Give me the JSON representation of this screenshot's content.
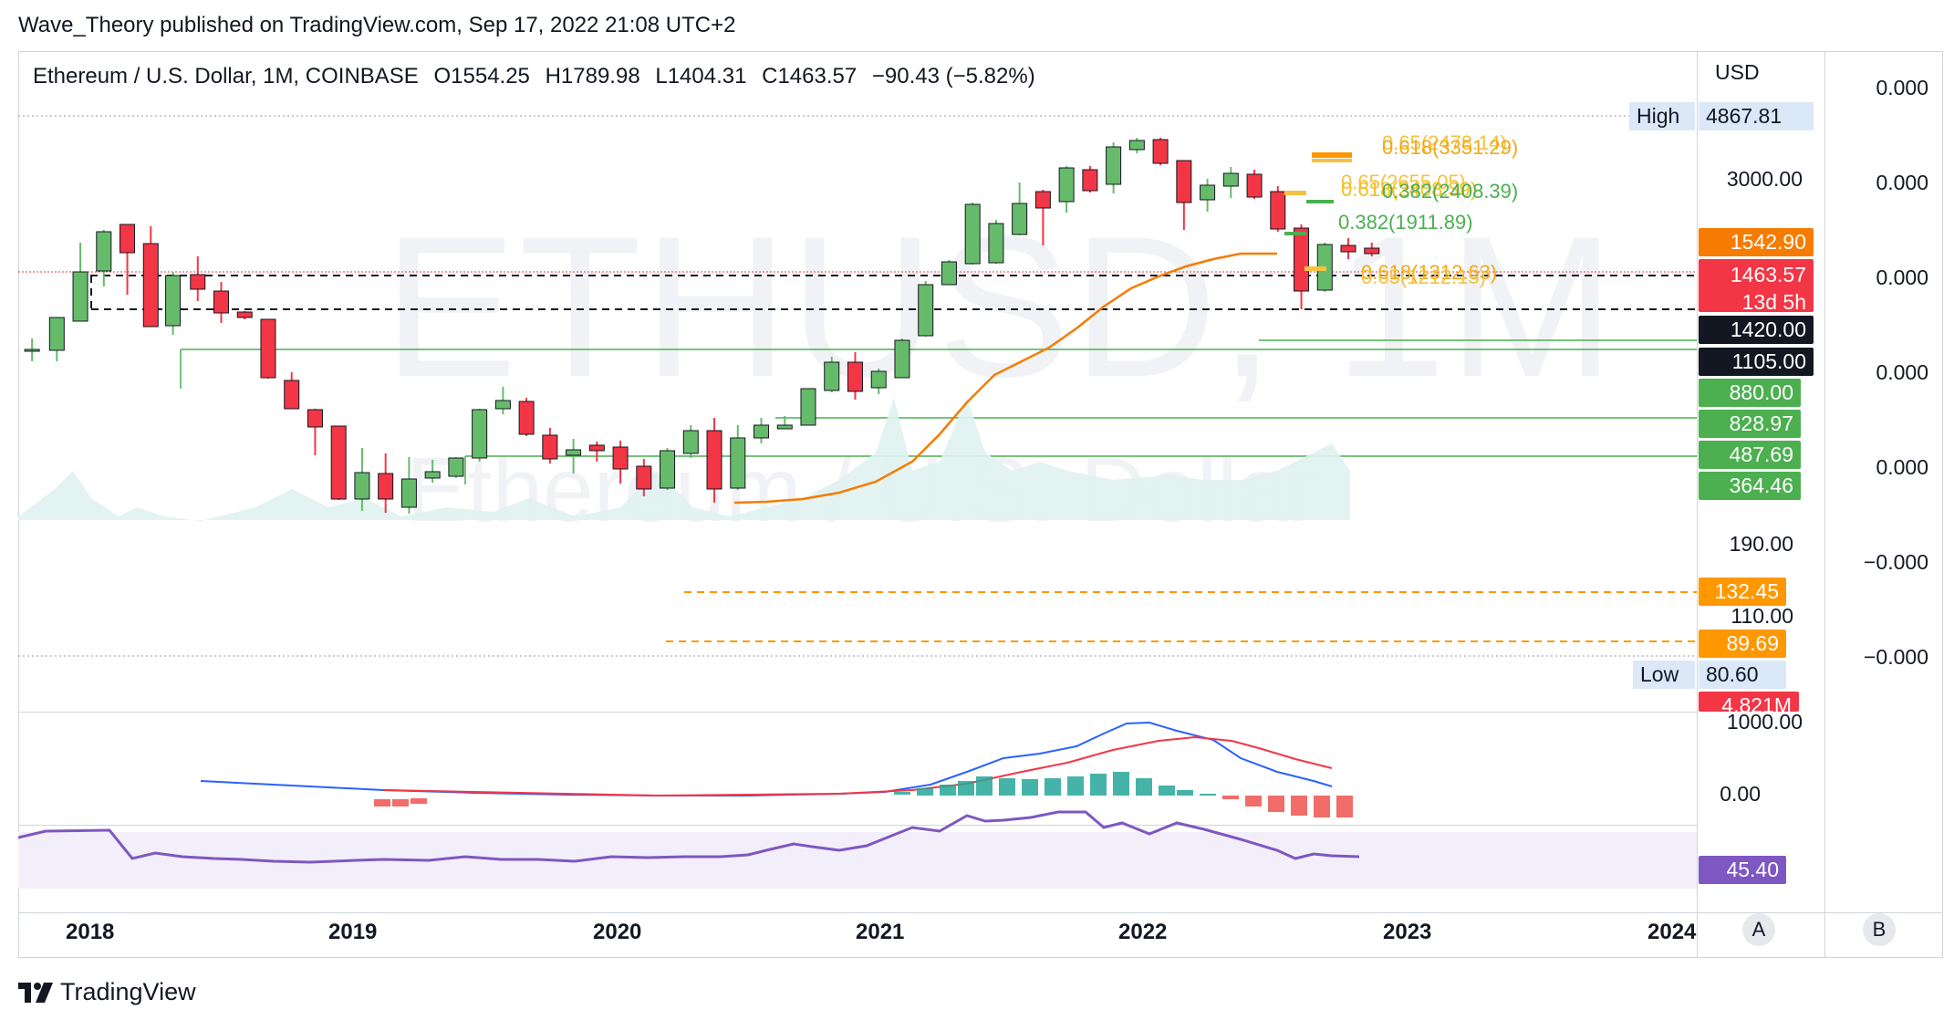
{
  "header": {
    "published": "Wave_Theory published on TradingView.com, Sep 17, 2022 21:08 UTC+2"
  },
  "legend": {
    "symbol": "Ethereum / U.S. Dollar, 1M, COINBASE",
    "open": "O1554.25",
    "high": "H1789.98",
    "low": "L1404.31",
    "close": "C1463.57",
    "change": "−90.43 (−5.82%)"
  },
  "watermark": {
    "ticker": "ETHUSD, 1M",
    "name": "Ethereum / U.S. Dollar"
  },
  "price_axis": {
    "currency": "USD",
    "high_label": "High",
    "high_value": "4867.81",
    "low_label": "Low",
    "low_value": "80.60",
    "levels": [
      "3000.00",
      "190.00",
      "110.00"
    ],
    "tags": {
      "ema": "1542.90",
      "last_price": "1463.57",
      "countdown": "13d 5h",
      "level_1420": "1420.00",
      "level_1105": "1105.00",
      "g880": "880.00",
      "g828": "828.97",
      "g487": "487.69",
      "g364": "364.46",
      "o132": "132.45",
      "o89": "89.69",
      "volume": "4.821M"
    },
    "macd_levels": [
      "1000.00",
      "0.00"
    ],
    "rsi_value": "45.40"
  },
  "right_axis": {
    "labels": [
      "0.000",
      "0.000",
      "0.000",
      "0.000",
      "0.000",
      "−0.000",
      "−0.000"
    ]
  },
  "fib_labels": [
    {
      "text": "0.65(2478.14)",
      "color": "#f5c242"
    },
    {
      "text": "0.618(3351.29)",
      "color": "#f0a81a"
    },
    {
      "text": "0.65(2655.05)",
      "color": "#f5c242"
    },
    {
      "text": "0.618(2408.39)",
      "color": "#f0c020"
    },
    {
      "text": "0.382(2408.39)",
      "color": "#4caf50"
    },
    {
      "text": "0.382(1911.89)",
      "color": "#4caf50"
    },
    {
      "text": "0.618(1312.63)",
      "color": "#f0a81a"
    },
    {
      "text": "0.65(1212.15)",
      "color": "#f5c242"
    }
  ],
  "time_axis": {
    "years": [
      "2018",
      "2019",
      "2020",
      "2021",
      "2022",
      "2023",
      "2024"
    ]
  },
  "buttons": {
    "auto": "A",
    "log": "B"
  },
  "footer": {
    "brand": "TradingView",
    "logo": "tradingview-logo-icon"
  },
  "colors": {
    "up": "#26a69a",
    "down": "#ef5350",
    "candle_up": "#66bb6a",
    "candle_down": "#f23645",
    "ema": "#f57c00",
    "green_line": "#4caf50",
    "orange_dash": "#ff9800",
    "macd": "#2962ff",
    "signal": "#f23645",
    "rsi": "#7e57c2"
  },
  "chart_data": {
    "type": "candlestick",
    "symbol": "ETHUSD",
    "interval": "1M",
    "scale": "log",
    "last_candle": {
      "open": 1554.25,
      "high": 1789.98,
      "low": 1404.31,
      "close": 1463.57
    },
    "ema_last": 1542.9,
    "horizontal_levels": [
      1420.0,
      1105.0,
      880.0,
      828.97,
      487.69,
      364.46,
      132.45,
      89.69
    ],
    "all_time_high": 4867.81,
    "all_time_low": 80.6,
    "volume_last": "4.821M",
    "rsi_last": 45.4
  }
}
